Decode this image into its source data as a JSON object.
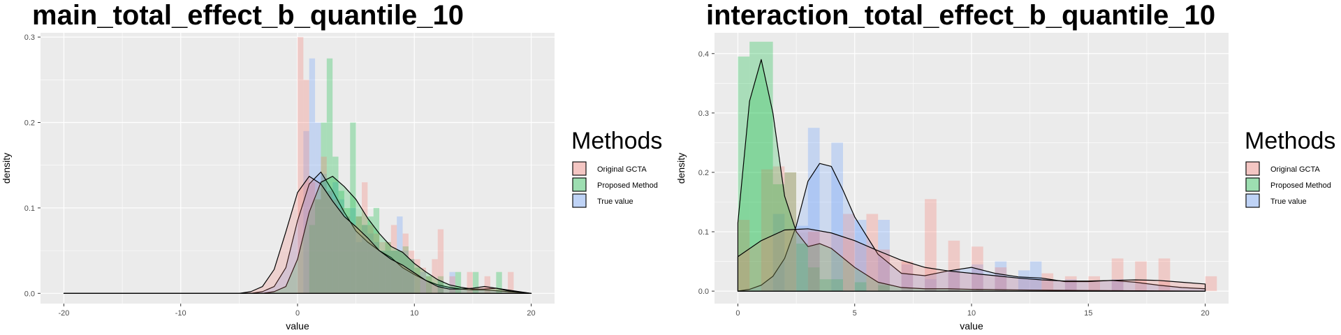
{
  "chart_data": [
    {
      "type": "histogram+density",
      "title": "main_total_effect_b_quantile_10",
      "xlabel": "value",
      "ylabel": "density",
      "xlim": [
        -22,
        22
      ],
      "ylim": [
        -0.012,
        0.305
      ],
      "x_ticks": [
        -20,
        -10,
        0,
        10,
        20
      ],
      "y_ticks": [
        0.0,
        0.1,
        0.2,
        0.3
      ],
      "grid": true,
      "legend": {
        "title": "Methods",
        "position": "right"
      },
      "series": [
        {
          "name": "Original GCTA",
          "color": "#F8766D",
          "bin_width": 0.5,
          "bars": [
            [
              0.0,
              0.3
            ],
            [
              0.5,
              0.25
            ],
            [
              1.0,
              0.13
            ],
            [
              1.5,
              0.11
            ],
            [
              2.0,
              0.16
            ],
            [
              2.5,
              0.12
            ],
            [
              3.0,
              0.11
            ],
            [
              3.5,
              0.1
            ],
            [
              4.0,
              0.09
            ],
            [
              4.5,
              0.08
            ],
            [
              5.0,
              0.09
            ],
            [
              5.5,
              0.13
            ],
            [
              6.0,
              0.08
            ],
            [
              6.5,
              0.07
            ],
            [
              7.0,
              0.06
            ],
            [
              7.5,
              0.06
            ],
            [
              8.0,
              0.08
            ],
            [
              8.5,
              0.05
            ],
            [
              9.0,
              0.07
            ],
            [
              9.5,
              0.05
            ],
            [
              10.0,
              0.04
            ],
            [
              10.5,
              0.03
            ],
            [
              11.0,
              0.02
            ],
            [
              11.5,
              0.04
            ],
            [
              12.0,
              0.075
            ],
            [
              13.0,
              0.02
            ],
            [
              14.5,
              0.025
            ],
            [
              16.0,
              0.02
            ],
            [
              18.0,
              0.025
            ]
          ],
          "density": [
            [
              -20,
              0
            ],
            [
              -5,
              0
            ],
            [
              -4,
              0.002
            ],
            [
              -3,
              0.008
            ],
            [
              -2,
              0.028
            ],
            [
              -1,
              0.072
            ],
            [
              0,
              0.118
            ],
            [
              1,
              0.137
            ],
            [
              2,
              0.128
            ],
            [
              3,
              0.108
            ],
            [
              4,
              0.09
            ],
            [
              5,
              0.078
            ],
            [
              6,
              0.065
            ],
            [
              7,
              0.05
            ],
            [
              8,
              0.04
            ],
            [
              9,
              0.033
            ],
            [
              10,
              0.024
            ],
            [
              11,
              0.015
            ],
            [
              12,
              0.008
            ],
            [
              13,
              0.005
            ],
            [
              14,
              0.005
            ],
            [
              15,
              0.006
            ],
            [
              16,
              0.008
            ],
            [
              17,
              0.006
            ],
            [
              18,
              0.003
            ],
            [
              20,
              0
            ]
          ]
        },
        {
          "name": "Proposed Method",
          "color": "#00BA38",
          "bin_width": 0.5,
          "bars": [
            [
              1.0,
              0.08
            ],
            [
              1.5,
              0.11
            ],
            [
              2.0,
              0.2
            ],
            [
              2.5,
              0.275
            ],
            [
              3.0,
              0.16
            ],
            [
              3.5,
              0.12
            ],
            [
              4.0,
              0.1
            ],
            [
              4.5,
              0.2
            ],
            [
              5.0,
              0.09
            ],
            [
              5.5,
              0.08
            ],
            [
              6.0,
              0.09
            ],
            [
              6.5,
              0.1
            ],
            [
              7.0,
              0.05
            ],
            [
              7.5,
              0.06
            ],
            [
              8.0,
              0.05
            ],
            [
              8.5,
              0.05
            ],
            [
              9.0,
              0.055
            ],
            [
              9.5,
              0.04
            ],
            [
              10.0,
              0.03
            ],
            [
              11.0,
              0.02
            ],
            [
              12.0,
              0.02
            ],
            [
              13.5,
              0.025
            ],
            [
              15.0,
              0.025
            ],
            [
              17.0,
              0.025
            ]
          ],
          "density": [
            [
              -20,
              0
            ],
            [
              -3,
              0
            ],
            [
              -2,
              0.002
            ],
            [
              -1,
              0.008
            ],
            [
              0,
              0.04
            ],
            [
              1,
              0.095
            ],
            [
              2,
              0.13
            ],
            [
              3,
              0.137
            ],
            [
              4,
              0.125
            ],
            [
              5,
              0.11
            ],
            [
              6,
              0.088
            ],
            [
              7,
              0.07
            ],
            [
              8,
              0.055
            ],
            [
              9,
              0.048
            ],
            [
              10,
              0.035
            ],
            [
              11,
              0.025
            ],
            [
              12,
              0.016
            ],
            [
              13,
              0.01
            ],
            [
              14,
              0.007
            ],
            [
              15,
              0.005
            ],
            [
              16,
              0.005
            ],
            [
              17,
              0.006
            ],
            [
              18,
              0.004
            ],
            [
              20,
              0
            ]
          ]
        },
        {
          "name": "True value",
          "color": "#619CFF",
          "bin_width": 0.5,
          "bars": [
            [
              0.5,
              0.19
            ],
            [
              1.0,
              0.275
            ],
            [
              1.5,
              0.2
            ],
            [
              2.0,
              0.14
            ],
            [
              2.5,
              0.12
            ],
            [
              3.0,
              0.13
            ],
            [
              3.5,
              0.11
            ],
            [
              4.0,
              0.09
            ],
            [
              4.5,
              0.1
            ],
            [
              5.0,
              0.06
            ],
            [
              5.5,
              0.08
            ],
            [
              6.0,
              0.07
            ],
            [
              6.5,
              0.06
            ],
            [
              7.0,
              0.05
            ],
            [
              7.5,
              0.05
            ],
            [
              8.0,
              0.05
            ],
            [
              8.5,
              0.09
            ],
            [
              9.0,
              0.05
            ],
            [
              9.5,
              0.04
            ],
            [
              10.5,
              0.025
            ],
            [
              12.0,
              0.015
            ],
            [
              13.0,
              0.025
            ]
          ],
          "density": [
            [
              -20,
              0
            ],
            [
              -4,
              0
            ],
            [
              -3,
              0.002
            ],
            [
              -2,
              0.008
            ],
            [
              -1,
              0.03
            ],
            [
              0,
              0.085
            ],
            [
              1,
              0.128
            ],
            [
              2,
              0.142
            ],
            [
              3,
              0.12
            ],
            [
              4,
              0.095
            ],
            [
              5,
              0.073
            ],
            [
              6,
              0.06
            ],
            [
              7,
              0.05
            ],
            [
              8,
              0.042
            ],
            [
              9,
              0.03
            ],
            [
              10,
              0.022
            ],
            [
              11,
              0.015
            ],
            [
              12,
              0.01
            ],
            [
              13,
              0.007
            ],
            [
              14,
              0.005
            ],
            [
              15,
              0.004
            ],
            [
              16,
              0.004
            ],
            [
              17,
              0.003
            ],
            [
              20,
              0
            ]
          ]
        }
      ]
    },
    {
      "type": "histogram+density",
      "title": "interaction_total_effect_b_quantile_10",
      "xlabel": "value",
      "ylabel": "density",
      "xlim": [
        -1,
        21
      ],
      "ylim": [
        -0.021,
        0.435
      ],
      "x_ticks": [
        0,
        5,
        10,
        15,
        20
      ],
      "y_ticks": [
        0.0,
        0.1,
        0.2,
        0.3,
        0.4
      ],
      "grid": true,
      "legend": {
        "title": "Methods",
        "position": "right"
      },
      "series": [
        {
          "name": "Original GCTA",
          "color": "#F8766D",
          "bin_width": 0.5,
          "bars": [
            [
              0.0,
              0.12
            ],
            [
              1.0,
              0.205
            ],
            [
              1.5,
              0.21
            ],
            [
              2.0,
              0.2
            ],
            [
              3.0,
              0.1
            ],
            [
              4.5,
              0.13
            ],
            [
              5.5,
              0.13
            ],
            [
              6.0,
              0.07
            ],
            [
              7.0,
              0.05
            ],
            [
              8.0,
              0.155
            ],
            [
              9.0,
              0.085
            ],
            [
              10.0,
              0.075
            ],
            [
              11.0,
              0.04
            ],
            [
              13.0,
              0.03
            ],
            [
              14.0,
              0.025
            ],
            [
              15.0,
              0.025
            ],
            [
              16.0,
              0.055
            ],
            [
              17.0,
              0.05
            ],
            [
              18.0,
              0.055
            ],
            [
              20.0,
              0.025
            ]
          ],
          "density": [
            [
              0,
              0.058
            ],
            [
              1,
              0.085
            ],
            [
              2,
              0.103
            ],
            [
              3,
              0.105
            ],
            [
              4,
              0.098
            ],
            [
              5,
              0.085
            ],
            [
              6,
              0.068
            ],
            [
              7,
              0.052
            ],
            [
              8,
              0.04
            ],
            [
              9,
              0.034
            ],
            [
              10,
              0.03
            ],
            [
              11,
              0.026
            ],
            [
              12,
              0.022
            ],
            [
              13,
              0.019
            ],
            [
              14,
              0.017
            ],
            [
              15,
              0.017
            ],
            [
              16,
              0.018
            ],
            [
              17,
              0.019
            ],
            [
              18,
              0.018
            ],
            [
              19,
              0.015
            ],
            [
              20,
              0.012
            ]
          ]
        },
        {
          "name": "Proposed Method",
          "color": "#00BA38",
          "bin_width": 0.5,
          "bars": [
            [
              0.0,
              0.395
            ],
            [
              0.5,
              0.42
            ],
            [
              1.0,
              0.42
            ],
            [
              1.5,
              0.18
            ],
            [
              2.0,
              0.2
            ],
            [
              2.5,
              0.08
            ],
            [
              3.0,
              0.04
            ],
            [
              3.5,
              0.02
            ],
            [
              4.0,
              0.02
            ],
            [
              5.0,
              0.015
            ],
            [
              6.0,
              0.01
            ]
          ],
          "density": [
            [
              0,
              0.115
            ],
            [
              0.5,
              0.32
            ],
            [
              1,
              0.39
            ],
            [
              1.5,
              0.3
            ],
            [
              2,
              0.16
            ],
            [
              2.5,
              0.1
            ],
            [
              3,
              0.075
            ],
            [
              3.5,
              0.08
            ],
            [
              4,
              0.072
            ],
            [
              5,
              0.04
            ],
            [
              6,
              0.015
            ],
            [
              7,
              0.006
            ],
            [
              8,
              0.004
            ],
            [
              9,
              0.004
            ],
            [
              10,
              0.003
            ],
            [
              12,
              0.002
            ],
            [
              15,
              0.001
            ],
            [
              20,
              0
            ]
          ]
        },
        {
          "name": "True value",
          "color": "#619CFF",
          "bin_width": 0.5,
          "bars": [
            [
              1.5,
              0.13
            ],
            [
              2.5,
              0.11
            ],
            [
              3.0,
              0.275
            ],
            [
              4.0,
              0.25
            ],
            [
              5.0,
              0.12
            ],
            [
              6.0,
              0.12
            ],
            [
              7.0,
              0.045
            ],
            [
              8.0,
              0.02
            ],
            [
              9.0,
              0.035
            ],
            [
              10.0,
              0.045
            ],
            [
              11.0,
              0.05
            ],
            [
              12.0,
              0.035
            ],
            [
              12.5,
              0.05
            ],
            [
              14.0,
              0.02
            ],
            [
              16.0,
              0.02
            ]
          ],
          "density": [
            [
              0,
              0
            ],
            [
              0.5,
              0.003
            ],
            [
              1,
              0.01
            ],
            [
              1.5,
              0.025
            ],
            [
              2,
              0.055
            ],
            [
              2.5,
              0.11
            ],
            [
              3,
              0.185
            ],
            [
              3.5,
              0.215
            ],
            [
              4,
              0.21
            ],
            [
              4.5,
              0.17
            ],
            [
              5,
              0.125
            ],
            [
              6,
              0.062
            ],
            [
              7,
              0.03
            ],
            [
              8,
              0.026
            ],
            [
              9,
              0.034
            ],
            [
              10,
              0.04
            ],
            [
              11,
              0.03
            ],
            [
              12,
              0.024
            ],
            [
              13,
              0.022
            ],
            [
              14,
              0.016
            ],
            [
              15,
              0.016
            ],
            [
              16,
              0.018
            ],
            [
              17,
              0.015
            ],
            [
              18,
              0.01
            ],
            [
              19,
              0.006
            ],
            [
              20,
              0.004
            ]
          ]
        }
      ]
    }
  ]
}
